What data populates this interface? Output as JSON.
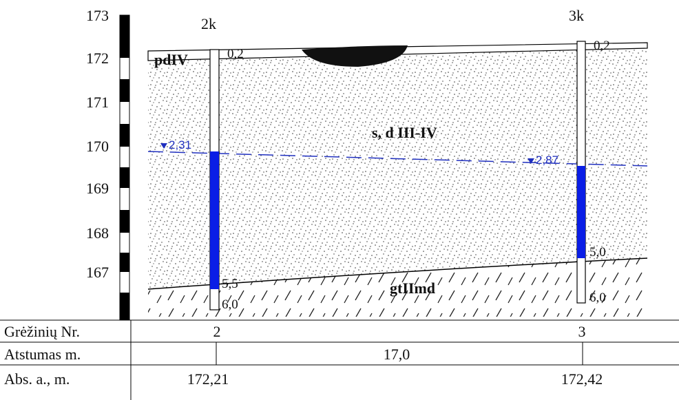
{
  "scale": {
    "labels": [
      173,
      172,
      171,
      170,
      169,
      168,
      167
    ]
  },
  "boreholes": [
    {
      "name": "2k",
      "top": "0,2",
      "water": "2,31",
      "layer_bottom": "5,5",
      "bottom": "6,0"
    },
    {
      "name": "3k",
      "top": "0,2",
      "water": "2,87",
      "layer_bottom": "5,0",
      "bottom": "6,0"
    }
  ],
  "layers": [
    "pdIV",
    "s, d III-IV",
    "gtIImd"
  ],
  "table": {
    "rows": [
      [
        "Grėžinių Nr.",
        "2",
        "3"
      ],
      [
        "Atstumas m.",
        "17,0"
      ],
      [
        "Abs. a., m.",
        "172,21",
        "172,42"
      ]
    ]
  }
}
